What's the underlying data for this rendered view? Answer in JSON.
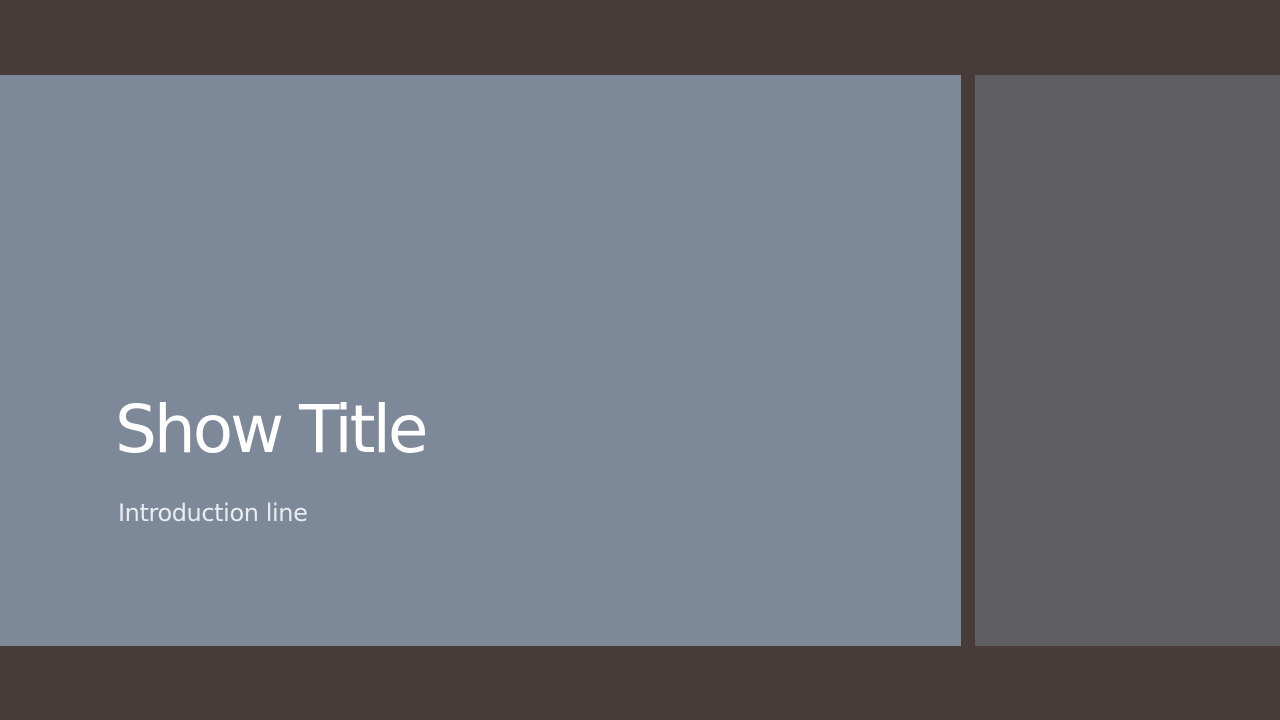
{
  "slide": {
    "title": "Show Title",
    "subtitle": "Introduction line"
  },
  "colors": {
    "frame": "#483c38",
    "left_panel": "#7d8898",
    "right_panel": "#5f5f61",
    "title_text": "#ffffff",
    "subtitle_text": "#e8ebf0"
  }
}
